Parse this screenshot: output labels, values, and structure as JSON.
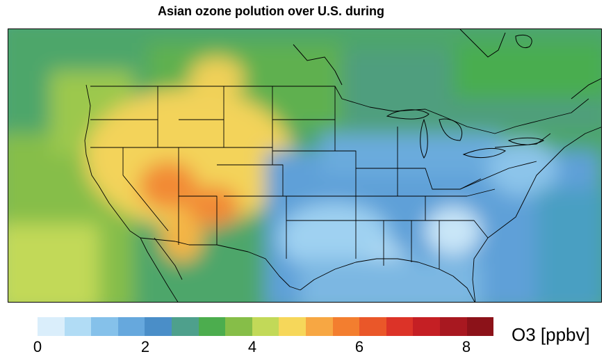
{
  "title": "Asian ozone polution over U.S. during",
  "map": {
    "variable": "O3",
    "region": "contiguous United States",
    "colors": {
      "background": "#4f9fd1",
      "coast": "#000000",
      "borders": "#000000"
    }
  },
  "legend": {
    "unit_label": "O3 [ppbv]",
    "ticks": [
      "0",
      "2",
      "4",
      "6",
      "8"
    ],
    "range": [
      0,
      8.5
    ],
    "bins": 17,
    "colors": [
      "#daeefb",
      "#b1dcf5",
      "#85c1ea",
      "#66a8dd",
      "#4a8ec8",
      "#4ea08c",
      "#4cad4e",
      "#86be48",
      "#c2d958",
      "#f6d75a",
      "#f7a743",
      "#f37e2f",
      "#ea5729",
      "#dc3328",
      "#c51f24",
      "#a81820",
      "#8c1219"
    ]
  }
}
